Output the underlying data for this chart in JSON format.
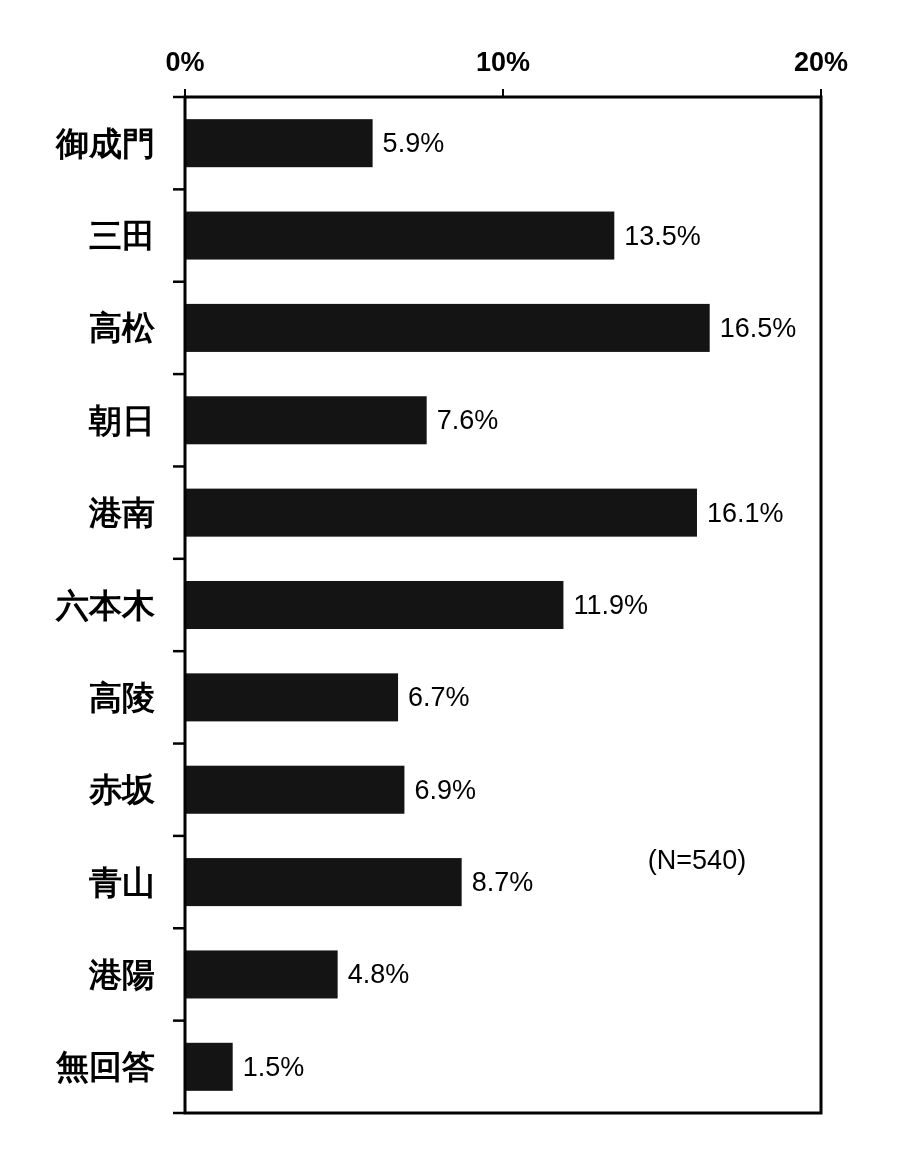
{
  "chart_data": {
    "type": "bar",
    "orientation": "horizontal",
    "categories": [
      "御成門",
      "三田",
      "高松",
      "朝日",
      "港南",
      "六本木",
      "高陵",
      "赤坂",
      "青山",
      "港陽",
      "無回答"
    ],
    "values": [
      5.9,
      13.5,
      16.5,
      7.6,
      16.1,
      11.9,
      6.7,
      6.9,
      8.7,
      4.8,
      1.5
    ],
    "value_labels": [
      "5.9%",
      "13.5%",
      "16.5%",
      "7.6%",
      "16.1%",
      "11.9%",
      "6.7%",
      "6.9%",
      "8.7%",
      "4.8%",
      "1.5%"
    ],
    "color": "#141414",
    "xlim": [
      0,
      20
    ],
    "xticks": [
      {
        "value": 0,
        "label": "0%"
      },
      {
        "value": 10,
        "label": "10%"
      },
      {
        "value": 20,
        "label": "20%"
      }
    ],
    "annotations": [
      "(N=540)"
    ]
  }
}
